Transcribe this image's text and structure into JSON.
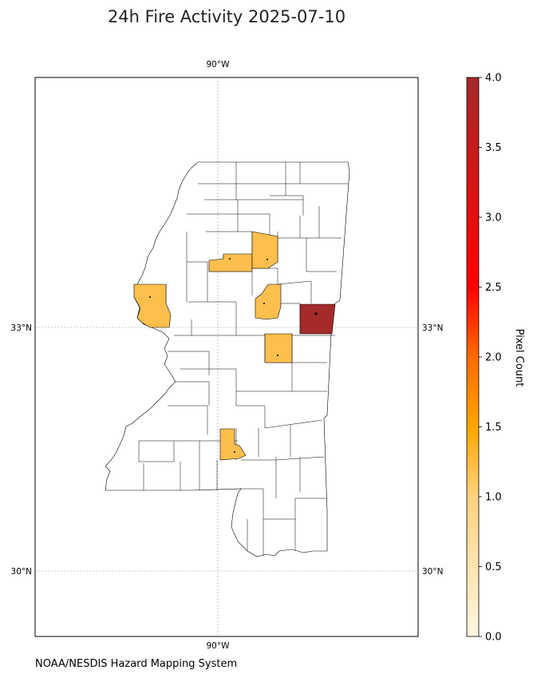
{
  "title": "24h Fire Activity 2025-07-10",
  "credit": "NOAA/NESDIS Hazard Mapping System",
  "map": {
    "lon_ticks": [
      {
        "label": "90°W",
        "lon": -90
      }
    ],
    "lat_ticks": [
      {
        "label": "33°N",
        "lat": 33
      },
      {
        "label": "30°N",
        "lat": 30
      }
    ],
    "gridlines": true,
    "region": "Mississippi counties",
    "highlighted_counties": [
      {
        "name": "county-a",
        "pixel_count": 1,
        "color": "#ffbf4d"
      },
      {
        "name": "county-b",
        "pixel_count": 1,
        "color": "#ffbf4d"
      },
      {
        "name": "county-c",
        "pixel_count": 1,
        "color": "#ffbf4d"
      },
      {
        "name": "county-d",
        "pixel_count": 1,
        "color": "#ffbf4d"
      },
      {
        "name": "county-e",
        "pixel_count": 4,
        "color": "#a52a2a"
      },
      {
        "name": "county-f",
        "pixel_count": 1,
        "color": "#ffbf4d"
      },
      {
        "name": "county-g",
        "pixel_count": 1,
        "color": "#ffbf4d"
      }
    ]
  },
  "colorbar": {
    "label": "Pixel Count",
    "min": 0.0,
    "max": 4.0,
    "ticks": [
      "0.0",
      "0.5",
      "1.0",
      "1.5",
      "2.0",
      "2.5",
      "3.0",
      "3.5",
      "4.0"
    ],
    "stops": [
      "#fff5e0",
      "#ffa500",
      "#ff0000",
      "#a52a2a"
    ]
  }
}
